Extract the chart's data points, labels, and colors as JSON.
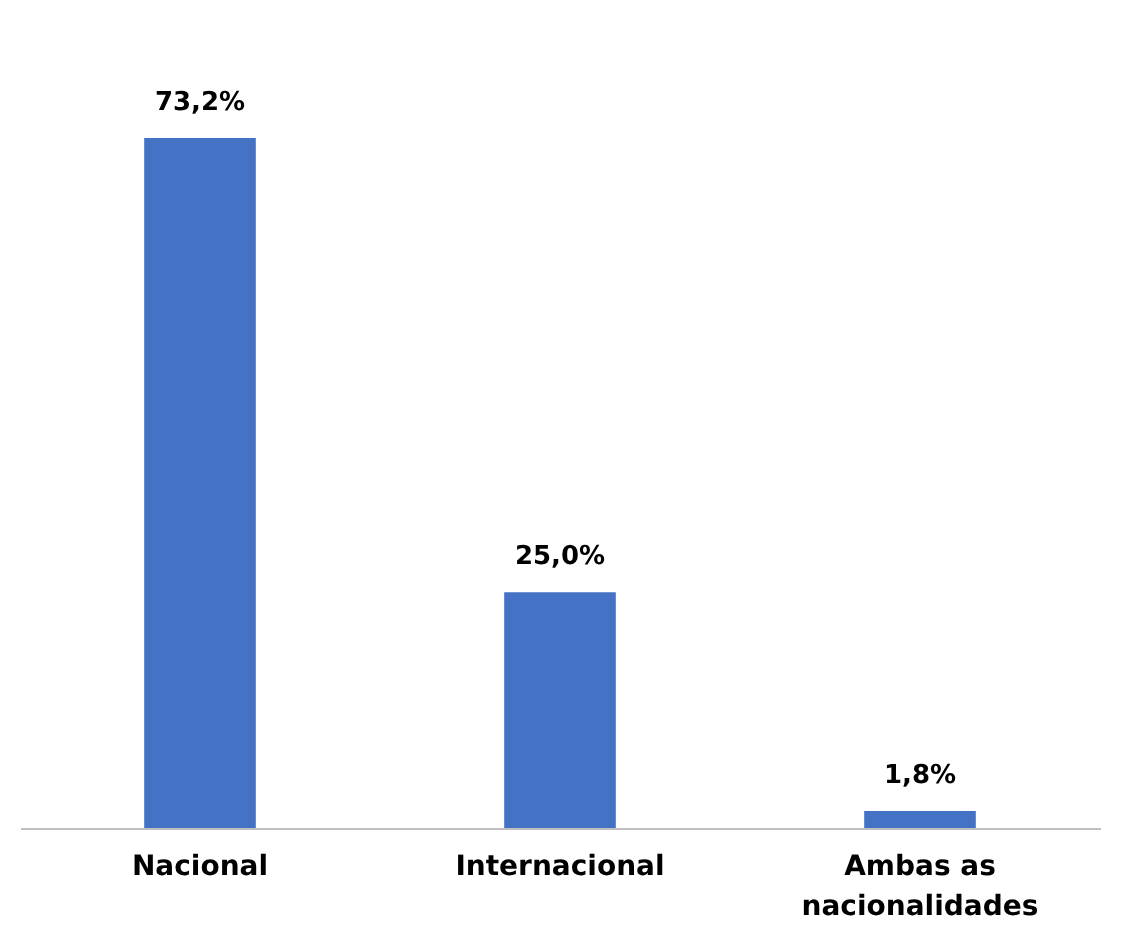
{
  "chart_data": {
    "type": "bar",
    "categories": [
      "Nacional",
      "Internacional",
      "Ambas as nacionalidades"
    ],
    "values": [
      73.2,
      25.0,
      1.8
    ],
    "color": "#4472c4",
    "value_labels": [
      "73,2%",
      "25,0%",
      "1,8%"
    ],
    "tick_labels": "x"
  }
}
